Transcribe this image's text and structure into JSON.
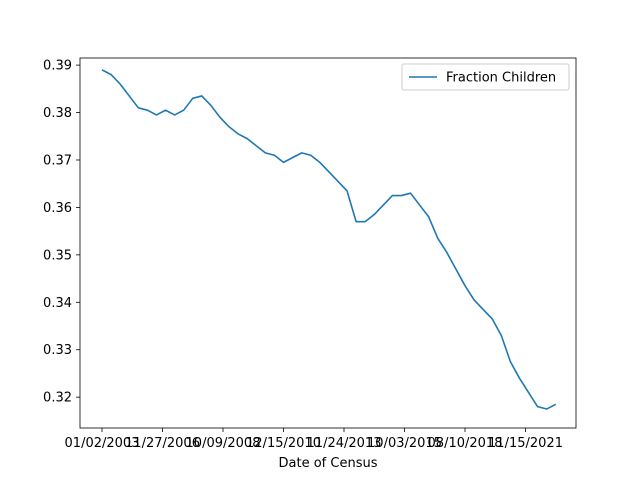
{
  "chart_data": {
    "type": "line",
    "title": "",
    "xlabel": "Date of Census",
    "ylabel": "",
    "x_ticks": [
      "01/02/2003",
      "11/27/2006",
      "10/09/2008",
      "12/15/2010",
      "11/24/2013",
      "10/03/2015",
      "08/10/2018",
      "11/15/2021"
    ],
    "y_ticks": [
      "0.32",
      "0.33",
      "0.34",
      "0.35",
      "0.36",
      "0.37",
      "0.38",
      "0.39"
    ],
    "ylim": [
      0.3135,
      0.3915
    ],
    "grid": false,
    "legend": {
      "position": "top-right"
    },
    "series": [
      {
        "name": "Fraction Children",
        "color": "#1f77b4",
        "x_tick_index": [
          0,
          0.15,
          0.3,
          0.45,
          0.6,
          0.75,
          0.9,
          1.05,
          1.2,
          1.35,
          1.5,
          1.65,
          1.8,
          1.95,
          2.1,
          2.25,
          2.4,
          2.55,
          2.7,
          2.85,
          3.0,
          3.15,
          3.3,
          3.45,
          3.6,
          3.75,
          3.9,
          4.05,
          4.2,
          4.35,
          4.5,
          4.65,
          4.8,
          4.95,
          5.1,
          5.25,
          5.4,
          5.55,
          5.7,
          5.85,
          6.0,
          6.15,
          6.3,
          6.45,
          6.6,
          6.75,
          6.9,
          7.05,
          7.2,
          7.35,
          7.5
        ],
        "y": [
          0.389,
          0.388,
          0.386,
          0.3835,
          0.381,
          0.3805,
          0.3795,
          0.3805,
          0.3795,
          0.3805,
          0.383,
          0.3835,
          0.3815,
          0.379,
          0.377,
          0.3755,
          0.3745,
          0.373,
          0.3715,
          0.371,
          0.3695,
          0.3705,
          0.3715,
          0.371,
          0.3695,
          0.3675,
          0.3655,
          0.3635,
          0.357,
          0.357,
          0.3585,
          0.3605,
          0.3625,
          0.3625,
          0.363,
          0.3605,
          0.358,
          0.3535,
          0.3505,
          0.347,
          0.3435,
          0.3405,
          0.3385,
          0.3365,
          0.333,
          0.3275,
          0.324,
          0.321,
          0.318,
          0.3175,
          0.3185
        ]
      }
    ]
  }
}
